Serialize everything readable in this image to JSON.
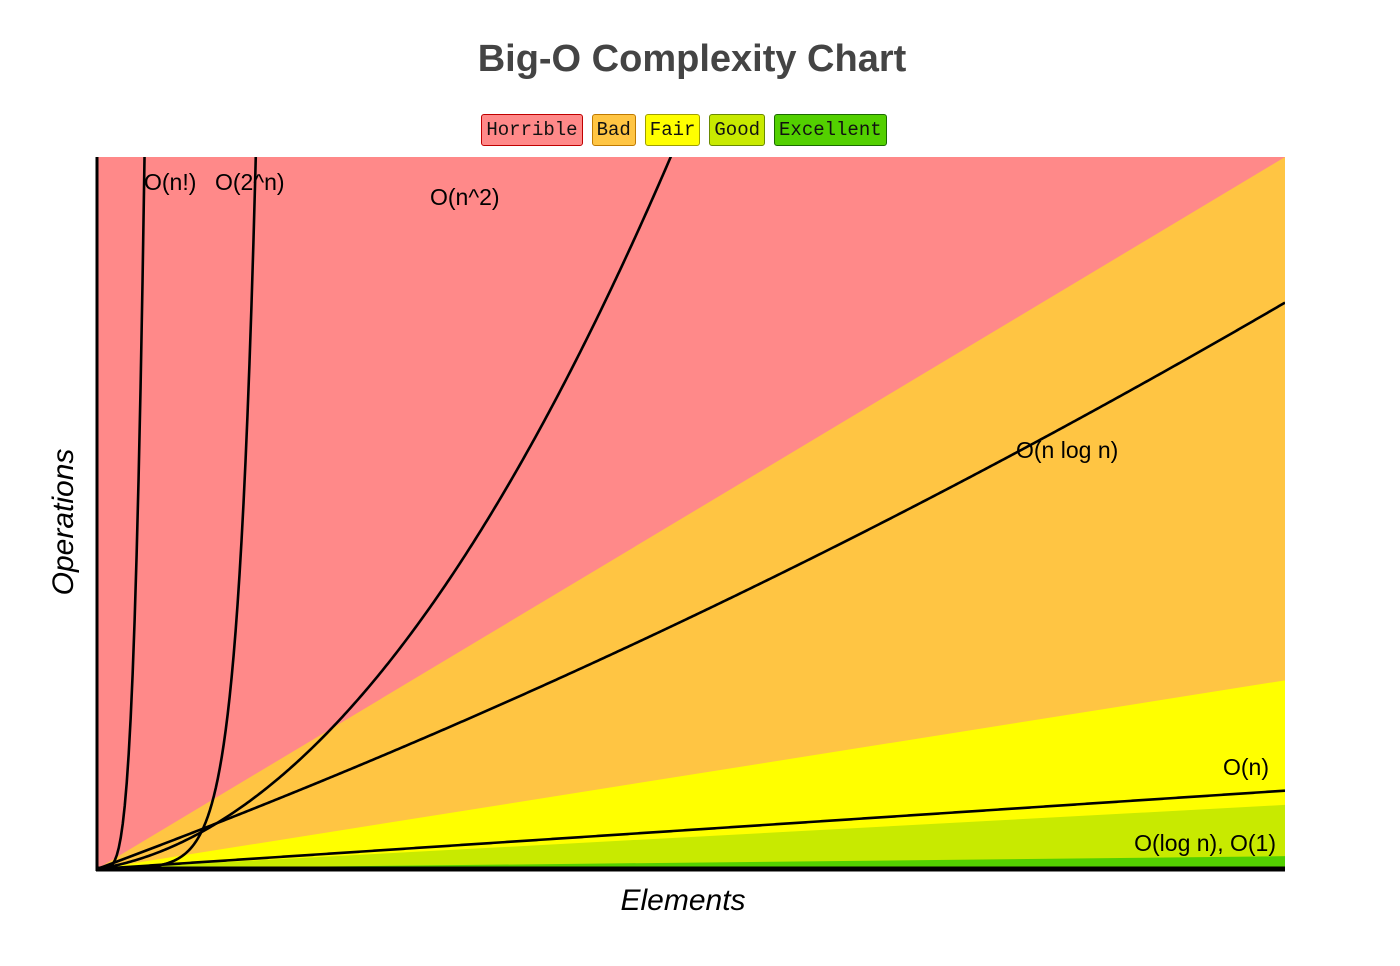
{
  "chart_data": {
    "type": "area",
    "title": "Big-O Complexity Chart",
    "xlabel": "Elements",
    "ylabel": "Operations",
    "xlim": [
      0,
      100
    ],
    "ylim": [
      0,
      1000
    ],
    "grid": false,
    "legend_position": "top-center",
    "legend": [
      {
        "name": "Horrible",
        "color": "#ff8989",
        "border": "#c00000"
      },
      {
        "name": "Bad",
        "color": "#ffc543",
        "border": "#c07a00"
      },
      {
        "name": "Fair",
        "color": "#ffff00",
        "border": "#a0a000"
      },
      {
        "name": "Good",
        "color": "#c8ea00",
        "border": "#6a8a00"
      },
      {
        "name": "Excellent",
        "color": "#53d000",
        "border": "#1a6a00"
      }
    ],
    "regions": [
      {
        "name": "Horrible",
        "color": "#ff8989",
        "upper_y_at_x100": 1000
      },
      {
        "name": "Bad",
        "color": "#ffc543",
        "upper_y_at_x100": 1000
      },
      {
        "name": "Fair",
        "color": "#ffff00",
        "upper_y_at_x100": 265
      },
      {
        "name": "Good",
        "color": "#c8ea00",
        "upper_y_at_x100": 90
      },
      {
        "name": "Excellent",
        "color": "#53d000",
        "upper_y_at_x100": 18
      }
    ],
    "series": [
      {
        "name": "O(n!)",
        "label": "O(n!)",
        "func": "factorial"
      },
      {
        "name": "O(2^n)",
        "label": "O(2^n)",
        "func": "exponential"
      },
      {
        "name": "O(n^2)",
        "label": "O(n^2)",
        "func": "quadratic"
      },
      {
        "name": "O(n log n)",
        "label": "O(n log n)",
        "func": "nlogn"
      },
      {
        "name": "O(n)",
        "label": "O(n)",
        "func": "linear"
      },
      {
        "name": "O(log n), O(1)",
        "label": "O(log n), O(1)",
        "func": "constant"
      }
    ]
  }
}
